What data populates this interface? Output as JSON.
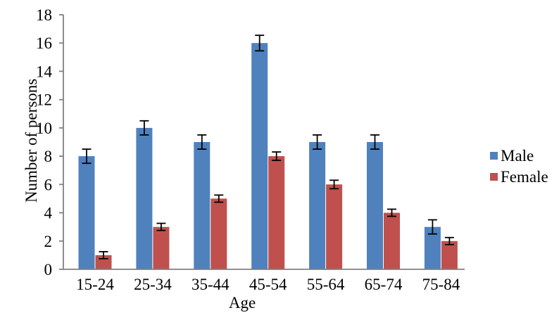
{
  "chart_data": {
    "type": "bar",
    "title": "",
    "categories": [
      "15-24",
      "25-34",
      "35-44",
      "45-54",
      "55-64",
      "65-74",
      "75-84"
    ],
    "series": [
      {
        "name": "Male",
        "color": "#4F81BD",
        "values": [
          8,
          10,
          9,
          16,
          9,
          9,
          3
        ],
        "errors": [
          0.5,
          0.5,
          0.5,
          0.55,
          0.5,
          0.5,
          0.5
        ]
      },
      {
        "name": "Female",
        "color": "#C0504D",
        "values": [
          1,
          3,
          5,
          8,
          6,
          4,
          2
        ],
        "errors": [
          0.25,
          0.25,
          0.25,
          0.3,
          0.3,
          0.25,
          0.25
        ]
      }
    ],
    "xlabel": "Age",
    "ylabel": "Number of persons",
    "ylim": [
      0,
      18
    ],
    "yticks": [
      0,
      2,
      4,
      6,
      8,
      10,
      12,
      14,
      16,
      18
    ],
    "grid": false,
    "error_bars": true,
    "legend_position": "right",
    "colors": {
      "axis": "#808080",
      "error_bar": "#000000",
      "text": "#000000",
      "background": "#FFFFFF"
    }
  }
}
